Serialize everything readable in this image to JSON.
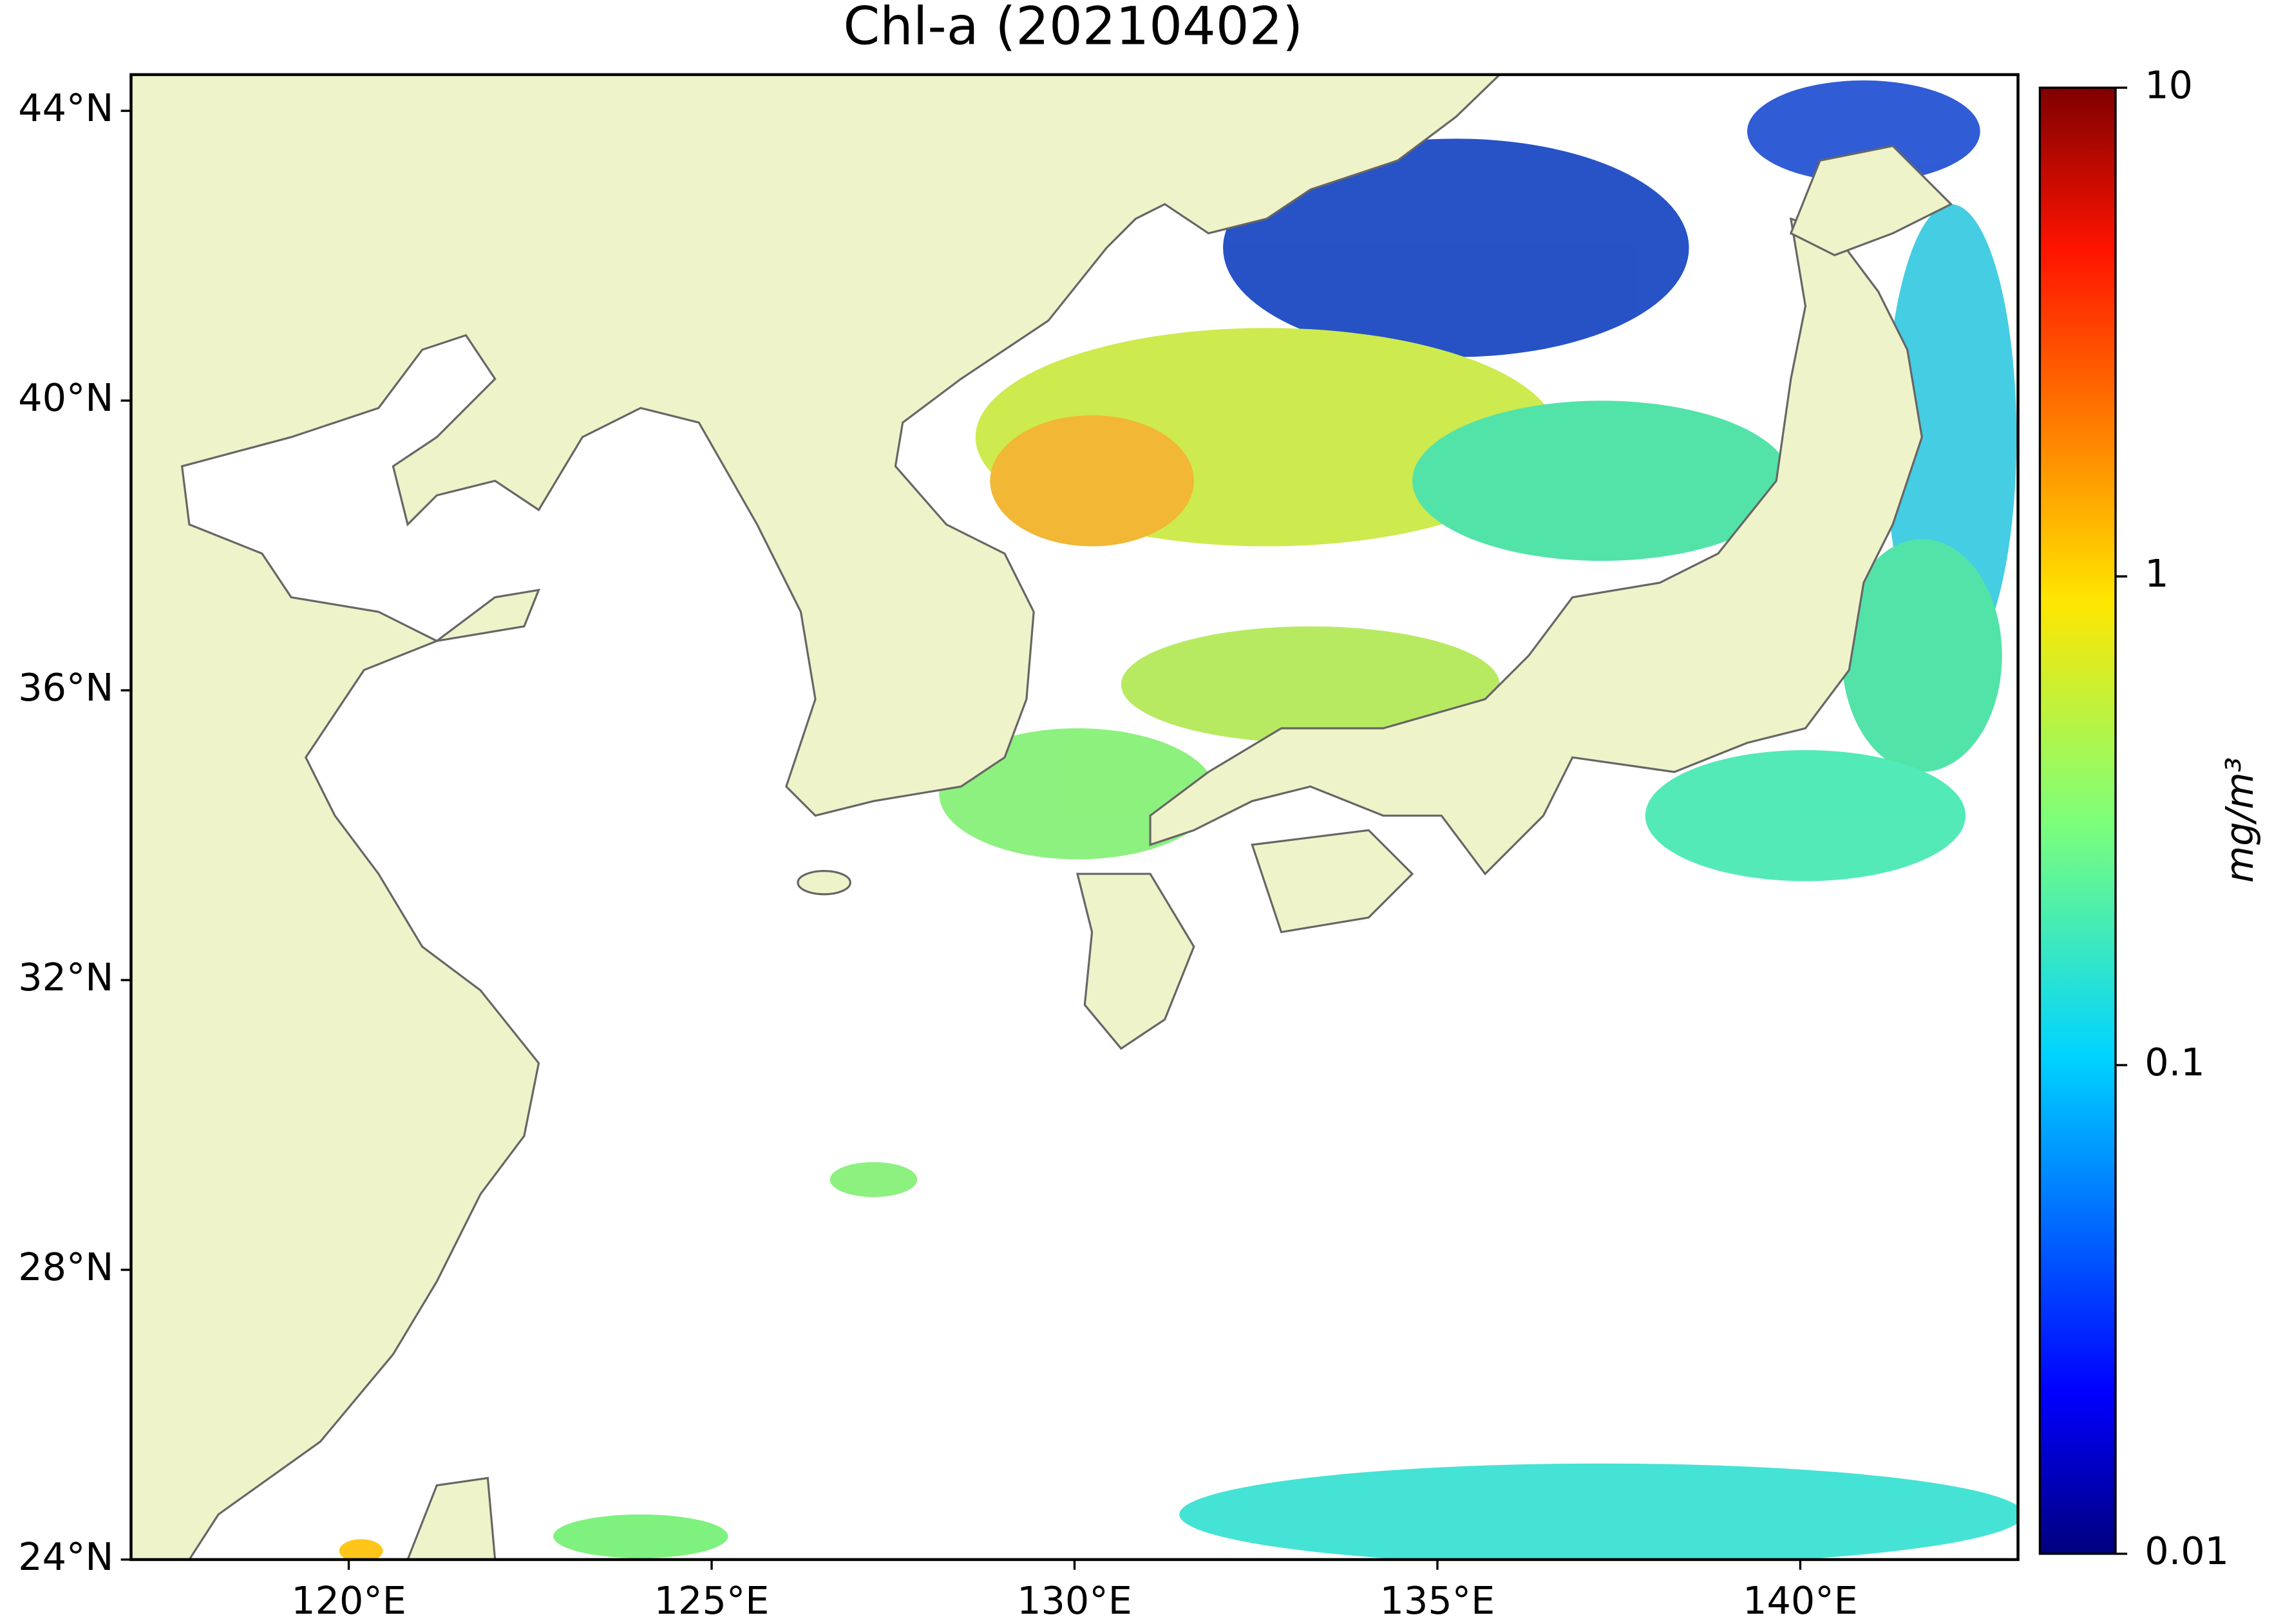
{
  "title": "Chl-a (20210402)",
  "map": {
    "xlim": [
      117,
      143
    ],
    "ylim": [
      24,
      44.5
    ],
    "xticks": [
      {
        "value": 120,
        "label": "120°E"
      },
      {
        "value": 125,
        "label": "125°E"
      },
      {
        "value": 130,
        "label": "130°E"
      },
      {
        "value": 135,
        "label": "135°E"
      },
      {
        "value": 140,
        "label": "140°E"
      }
    ],
    "yticks": [
      {
        "value": 24,
        "label": "24°N"
      },
      {
        "value": 28,
        "label": "28°N"
      },
      {
        "value": 32,
        "label": "32°N"
      },
      {
        "value": 36,
        "label": "36°N"
      },
      {
        "value": 40,
        "label": "40°N"
      },
      {
        "value": 44,
        "label": "44°N"
      }
    ]
  },
  "colorbar": {
    "label": "mg/m³",
    "scale": "log",
    "lim": [
      0.01,
      10
    ],
    "ticks": [
      0.01,
      0.1,
      1,
      10
    ]
  }
}
